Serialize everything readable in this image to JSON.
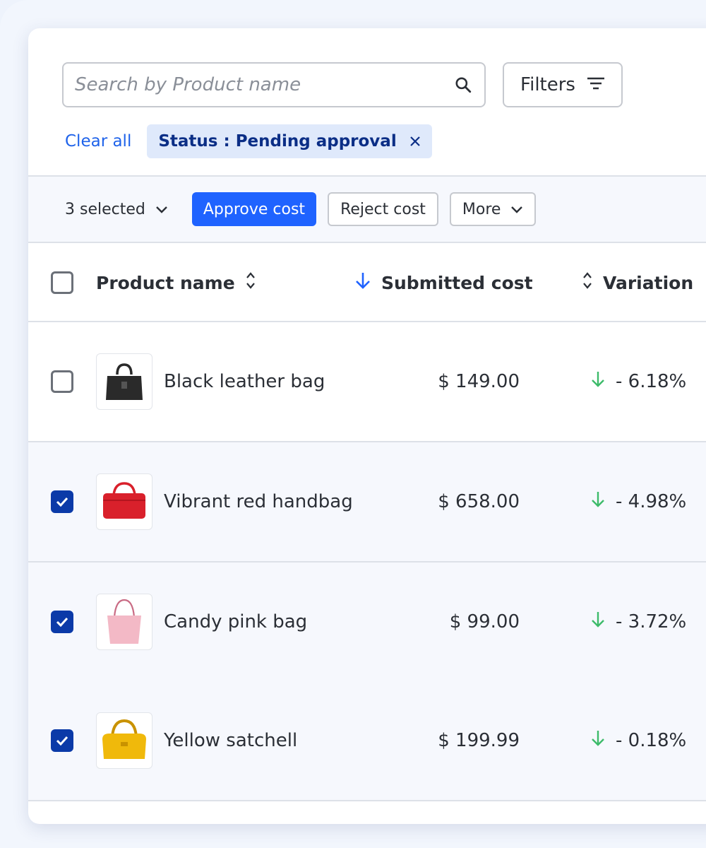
{
  "search": {
    "placeholder": "Search by Product name",
    "value": ""
  },
  "filters_label": "Filters",
  "clear_all_label": "Clear all",
  "active_filter": "Status : Pending approval",
  "bulk": {
    "selected_label": "3 selected",
    "approve_label": "Approve cost",
    "reject_label": "Reject cost",
    "more_label": "More"
  },
  "columns": {
    "product": "Product name",
    "cost": "Submitted cost",
    "variation": "Variation"
  },
  "rows": [
    {
      "name": "Black leather bag",
      "cost": "$ 149.00",
      "variation": "- 6.18%",
      "checked": false,
      "color": "#2a2a2a"
    },
    {
      "name": "Vibrant red handbag",
      "cost": "$ 658.00",
      "variation": "- 4.98%",
      "checked": true,
      "color": "#d9202b"
    },
    {
      "name": "Candy pink bag",
      "cost": "$ 99.00",
      "variation": "- 3.72%",
      "checked": true,
      "color": "#f3b9c6"
    },
    {
      "name": "Yellow satchell",
      "cost": "$ 199.99",
      "variation": "- 0.18%",
      "checked": true,
      "color": "#f0b90b"
    }
  ],
  "colors": {
    "primary": "#1f63ff",
    "link": "#1f63ea",
    "checkbox_checked": "#0b3aa8",
    "variation_down": "#3dbb6a"
  }
}
